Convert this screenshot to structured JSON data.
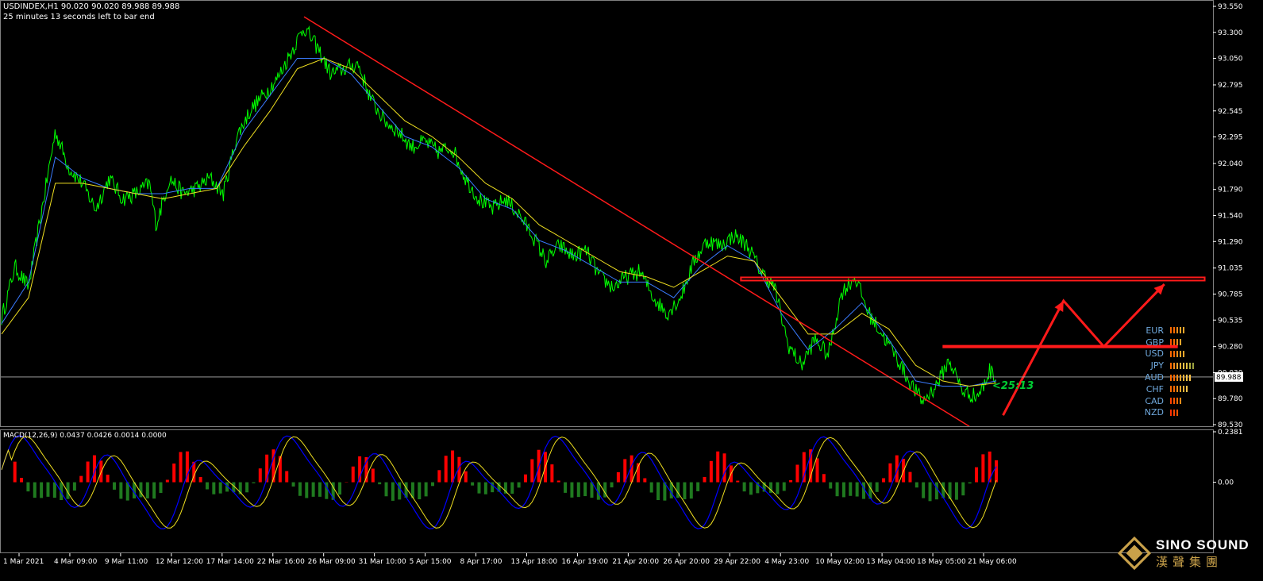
{
  "header": {
    "symbol_line": "USDINDEX,H1  90.020 90.020 89.988 89.988",
    "countdown_line": "25 minutes 13 seconds left to bar end"
  },
  "current_price_label": "89.988",
  "countdown_overlay": "<25:13",
  "macd_header": "MACD(12,26,9) 0.0437 0.0426 0.0014 0.0000",
  "colors": {
    "background": "#000000",
    "price": "#00ff00",
    "ma_fast": "#3a7bff",
    "ma_slow": "#f0e020",
    "trendline": "#ff1a1a",
    "macd_pos": "#ff0000",
    "macd_neg": "#1f7a1f",
    "macd_line": "#0000ff",
    "signal_line": "#f0e020"
  },
  "currency_strength": [
    {
      "name": "EUR",
      "bars": 5,
      "colors": [
        "#ff6a00",
        "#ff6a00",
        "#ff8c1a",
        "#ffa62b",
        "#ffa62b"
      ]
    },
    {
      "name": "GBP",
      "bars": 4,
      "colors": [
        "#ff5500",
        "#ff6a00",
        "#ff8c1a",
        "#ffa62b"
      ]
    },
    {
      "name": "USD",
      "bars": 5,
      "colors": [
        "#ff6a00",
        "#ff6a00",
        "#ff8c1a",
        "#ffa62b",
        "#ffa62b"
      ]
    },
    {
      "name": "JPY",
      "bars": 8,
      "colors": [
        "#ff6a00",
        "#ff8c1a",
        "#ffa62b",
        "#ffb33a",
        "#ffc44a",
        "#e0c040",
        "#b0b040",
        "#9aa040"
      ]
    },
    {
      "name": "AUD",
      "bars": 7,
      "colors": [
        "#ff6a00",
        "#ff6a00",
        "#ff8c1a",
        "#ffa62b",
        "#ffb33a",
        "#ffc44a",
        "#ffc44a"
      ]
    },
    {
      "name": "CHF",
      "bars": 6,
      "colors": [
        "#ff6a00",
        "#ff6a00",
        "#ff8c1a",
        "#ffa62b",
        "#ffb33a",
        "#ffc44a"
      ]
    },
    {
      "name": "CAD",
      "bars": 4,
      "colors": [
        "#ff4400",
        "#ff5500",
        "#ff6a00",
        "#ff8c1a"
      ]
    },
    {
      "name": "NZD",
      "bars": 3,
      "colors": [
        "#ff3300",
        "#ff4400",
        "#ff5500"
      ]
    }
  ],
  "logo": {
    "en": "SINO SOUND",
    "cn": "漢聲集團"
  },
  "chart_data": [
    {
      "type": "line",
      "title": "",
      "series": [],
      "x_tick_labels": [
        "1 Mar 2021",
        "4 Mar 09:00",
        "9 Mar 11:00",
        "12 Mar 12:00",
        "17 Mar 14:00",
        "22 Mar 16:00",
        "26 Mar 09:00",
        "31 Mar 10:00",
        "5 Apr 15:00",
        "8 Apr 17:00",
        "13 Apr 18:00",
        "16 Apr 19:00",
        "21 Apr 20:00",
        "26 Apr 20:00",
        "29 Apr 22:00",
        "4 May 23:00",
        "10 May 02:00",
        "13 May 04:00",
        "18 May 05:00",
        "21 May 06:00"
      ],
      "y_tick_labels": [
        "93.550",
        "93.300",
        "93.050",
        "92.795",
        "92.545",
        "92.295",
        "92.040",
        "91.790",
        "91.540",
        "91.290",
        "91.035",
        "90.785",
        "90.535",
        "90.280",
        "90.030",
        "89.780",
        "89.530"
      ],
      "ylim": [
        89.53,
        93.55
      ],
      "price_path": [
        [
          0,
          90.55
        ],
        [
          2,
          91.05
        ],
        [
          4,
          90.85
        ],
        [
          6,
          91.6
        ],
        [
          8,
          92.35
        ],
        [
          10,
          92.0
        ],
        [
          12,
          91.85
        ],
        [
          14,
          91.6
        ],
        [
          16,
          91.9
        ],
        [
          18,
          91.7
        ],
        [
          20,
          91.75
        ],
        [
          22,
          91.85
        ],
        [
          23,
          91.45
        ],
        [
          25,
          91.9
        ],
        [
          27,
          91.75
        ],
        [
          29,
          91.8
        ],
        [
          31,
          91.9
        ],
        [
          33,
          91.75
        ],
        [
          35,
          92.3
        ],
        [
          37,
          92.55
        ],
        [
          39,
          92.7
        ],
        [
          41,
          92.85
        ],
        [
          43,
          93.1
        ],
        [
          45,
          93.35
        ],
        [
          47,
          93.15
        ],
        [
          49,
          92.9
        ],
        [
          51,
          92.95
        ],
        [
          53,
          93.0
        ],
        [
          55,
          92.65
        ],
        [
          57,
          92.45
        ],
        [
          59,
          92.35
        ],
        [
          61,
          92.2
        ],
        [
          63,
          92.25
        ],
        [
          65,
          92.15
        ],
        [
          67,
          92.2
        ],
        [
          69,
          91.9
        ],
        [
          71,
          91.7
        ],
        [
          73,
          91.6
        ],
        [
          75,
          91.7
        ],
        [
          77,
          91.55
        ],
        [
          79,
          91.35
        ],
        [
          81,
          91.1
        ],
        [
          83,
          91.25
        ],
        [
          85,
          91.15
        ],
        [
          87,
          91.2
        ],
        [
          89,
          90.95
        ],
        [
          91,
          90.85
        ],
        [
          93,
          90.95
        ],
        [
          95,
          91.0
        ],
        [
          97,
          90.75
        ],
        [
          99,
          90.6
        ],
        [
          101,
          90.75
        ],
        [
          103,
          91.1
        ],
        [
          105,
          91.3
        ],
        [
          107,
          91.25
        ],
        [
          109,
          91.35
        ],
        [
          111,
          91.25
        ],
        [
          113,
          91.0
        ],
        [
          115,
          90.85
        ],
        [
          117,
          90.3
        ],
        [
          119,
          90.1
        ],
        [
          121,
          90.35
        ],
        [
          123,
          90.2
        ],
        [
          125,
          90.8
        ],
        [
          127,
          90.95
        ],
        [
          129,
          90.6
        ],
        [
          131,
          90.4
        ],
        [
          133,
          90.2
        ],
        [
          135,
          89.95
        ],
        [
          137,
          89.75
        ],
        [
          139,
          89.9
        ],
        [
          141,
          90.15
        ],
        [
          143,
          89.85
        ],
        [
          145,
          89.8
        ],
        [
          146,
          89.88
        ],
        [
          147,
          90.05
        ],
        [
          148,
          89.99
        ]
      ],
      "ma_fast_path": [
        [
          0,
          90.5
        ],
        [
          4,
          90.9
        ],
        [
          8,
          92.1
        ],
        [
          12,
          91.9
        ],
        [
          16,
          91.8
        ],
        [
          20,
          91.75
        ],
        [
          24,
          91.75
        ],
        [
          28,
          91.8
        ],
        [
          32,
          91.8
        ],
        [
          36,
          92.35
        ],
        [
          40,
          92.7
        ],
        [
          44,
          93.05
        ],
        [
          48,
          93.05
        ],
        [
          52,
          92.9
        ],
        [
          56,
          92.6
        ],
        [
          60,
          92.3
        ],
        [
          64,
          92.2
        ],
        [
          68,
          92.0
        ],
        [
          72,
          91.7
        ],
        [
          76,
          91.6
        ],
        [
          80,
          91.3
        ],
        [
          84,
          91.2
        ],
        [
          88,
          91.05
        ],
        [
          92,
          90.9
        ],
        [
          96,
          90.9
        ],
        [
          100,
          90.75
        ],
        [
          104,
          91.05
        ],
        [
          108,
          91.25
        ],
        [
          112,
          91.1
        ],
        [
          116,
          90.6
        ],
        [
          120,
          90.25
        ],
        [
          124,
          90.45
        ],
        [
          128,
          90.7
        ],
        [
          132,
          90.35
        ],
        [
          136,
          89.95
        ],
        [
          140,
          89.9
        ],
        [
          144,
          89.9
        ],
        [
          148,
          89.95
        ]
      ],
      "ma_slow_path": [
        [
          0,
          90.4
        ],
        [
          4,
          90.75
        ],
        [
          8,
          91.85
        ],
        [
          12,
          91.85
        ],
        [
          16,
          91.8
        ],
        [
          20,
          91.75
        ],
        [
          24,
          91.7
        ],
        [
          28,
          91.75
        ],
        [
          32,
          91.8
        ],
        [
          36,
          92.2
        ],
        [
          40,
          92.55
        ],
        [
          44,
          92.95
        ],
        [
          48,
          93.05
        ],
        [
          52,
          92.95
        ],
        [
          56,
          92.7
        ],
        [
          60,
          92.45
        ],
        [
          64,
          92.3
        ],
        [
          68,
          92.1
        ],
        [
          72,
          91.85
        ],
        [
          76,
          91.7
        ],
        [
          80,
          91.45
        ],
        [
          84,
          91.3
        ],
        [
          88,
          91.15
        ],
        [
          92,
          91.0
        ],
        [
          96,
          90.95
        ],
        [
          100,
          90.85
        ],
        [
          104,
          91.0
        ],
        [
          108,
          91.15
        ],
        [
          112,
          91.1
        ],
        [
          116,
          90.75
        ],
        [
          120,
          90.4
        ],
        [
          124,
          90.4
        ],
        [
          128,
          90.6
        ],
        [
          132,
          90.45
        ],
        [
          136,
          90.1
        ],
        [
          140,
          89.95
        ],
        [
          144,
          89.9
        ],
        [
          148,
          89.93
        ]
      ],
      "trendline": [
        [
          45,
          93.45
        ],
        [
          133,
          89.95
        ]
      ],
      "resistance_line": {
        "y": 90.93,
        "x_start": 110,
        "x_end": 179
      },
      "support_line": {
        "y": 90.28,
        "x_start": 140,
        "x_end": 175
      },
      "forecast_arrow": [
        [
          149,
          89.62
        ],
        [
          158,
          90.72
        ],
        [
          164,
          90.28
        ],
        [
          173,
          90.88
        ]
      ],
      "current_price": 89.988
    },
    {
      "type": "bar",
      "title": "MACD(12,26,9)",
      "y_tick_labels": [
        "0.2381",
        "0.00"
      ],
      "ylim": [
        -0.32,
        0.2381
      ],
      "histogram_seed": 7,
      "histogram_count": 150
    }
  ]
}
